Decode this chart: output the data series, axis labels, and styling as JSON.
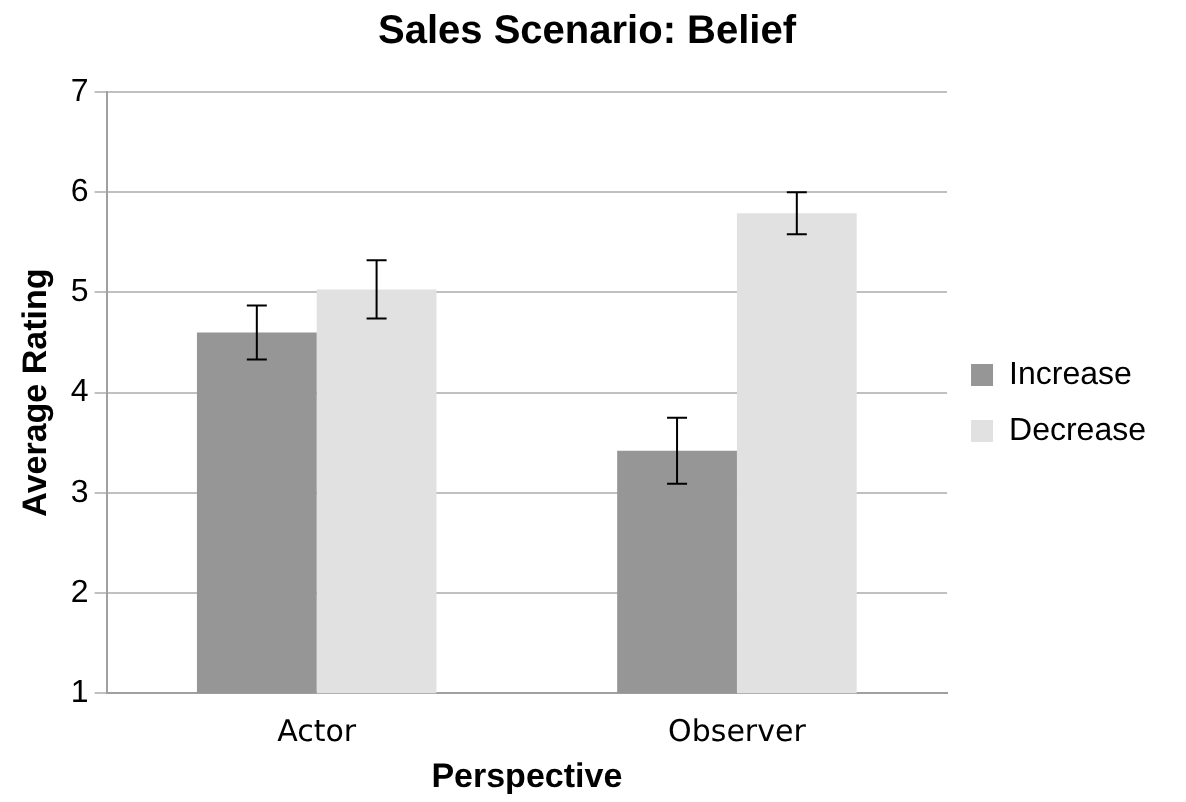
{
  "chart_data": {
    "type": "bar",
    "title": "Sales Scenario: Belief",
    "xlabel": "Perspective",
    "ylabel": "Average Rating",
    "categories": [
      "Actor",
      "Observer"
    ],
    "series": [
      {
        "name": "Increase",
        "color": "#969696",
        "values": [
          4.6,
          3.42
        ],
        "errors": [
          0.27,
          0.33
        ]
      },
      {
        "name": "Decrease",
        "color": "#e1e1e1",
        "values": [
          5.03,
          5.79
        ],
        "errors": [
          0.29,
          0.21
        ]
      }
    ],
    "ylim": [
      1,
      7
    ],
    "yticks": [
      1,
      2,
      3,
      4,
      5,
      6,
      7
    ],
    "grid": "y",
    "legend": "right"
  }
}
